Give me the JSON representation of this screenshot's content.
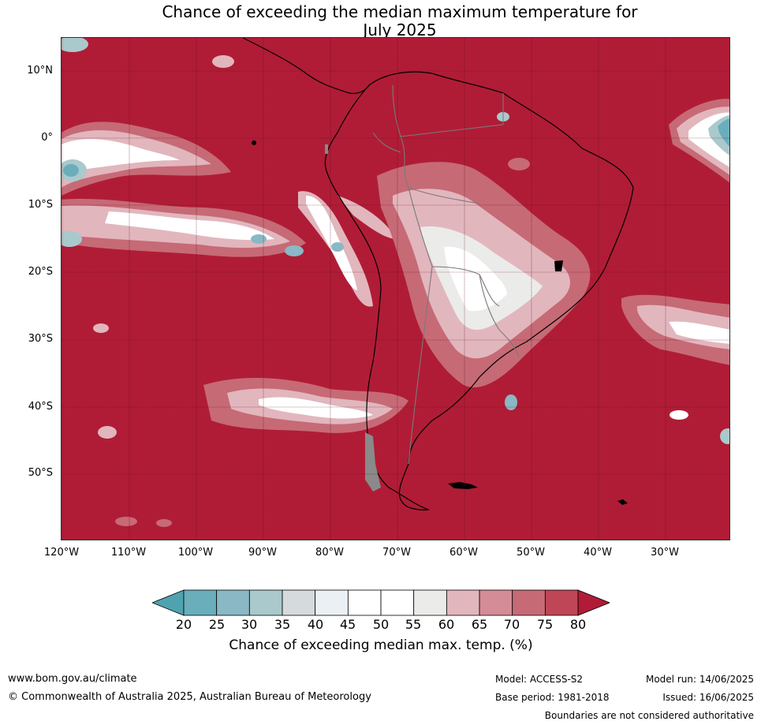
{
  "title_line1": "Chance of exceeding the median maximum temperature for",
  "title_line2": "July 2025",
  "lat_labels": [
    "10°N",
    "0°",
    "10°S",
    "20°S",
    "30°S",
    "40°S",
    "50°S"
  ],
  "lon_labels": [
    "120°W",
    "110°W",
    "100°W",
    "90°W",
    "80°W",
    "70°W",
    "60°W",
    "50°W",
    "40°W",
    "30°W"
  ],
  "colorbar": {
    "ticks": [
      "20",
      "25",
      "30",
      "35",
      "40",
      "45",
      "50",
      "55",
      "60",
      "65",
      "70",
      "75",
      "80"
    ],
    "colors": [
      "#4fa3b0",
      "#6aaebb",
      "#8ab8c5",
      "#aac9cc",
      "#d5dadc",
      "#eaf0f3",
      "#ffffff",
      "#ffffff",
      "#ebebea",
      "#e2b6bd",
      "#d48c96",
      "#c66a76",
      "#bf4656",
      "#b01c36"
    ],
    "label": "Chance of exceeding median max. temp. (%)"
  },
  "footer": {
    "website": "www.bom.gov.au/climate",
    "copyright": "© Commonwealth of Australia 2025, Australian Bureau of Meteorology",
    "model": "Model: ACCESS-S2",
    "base_period": "Base period: 1981-2018",
    "model_run": "Model run: 14/06/2025",
    "issued": "Issued: 16/06/2025",
    "boundaries_note": "Boundaries are not considered authoritative"
  },
  "colors": {
    "above_80": "#b01c36",
    "land_outline": "#000000",
    "border_lines": "#7a7a7a",
    "grid": "#5a0a18"
  }
}
